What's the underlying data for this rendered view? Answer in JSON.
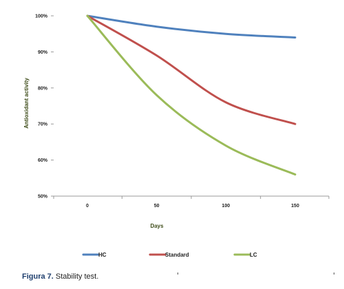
{
  "chart_data": {
    "type": "line",
    "x": [
      0,
      50,
      100,
      150
    ],
    "series": [
      {
        "name": "HC",
        "color": "#4f81bd",
        "values": [
          100,
          97,
          95,
          94
        ]
      },
      {
        "name": "Standard",
        "color": "#c0504d",
        "values": [
          100,
          89,
          76,
          70
        ]
      },
      {
        "name": "LC",
        "color": "#9bbb59",
        "values": [
          100,
          78,
          64,
          56
        ]
      }
    ],
    "x_tick_labels": [
      "0",
      "50",
      "100",
      "150"
    ],
    "y_ticks": [
      50,
      60,
      70,
      80,
      90,
      100
    ],
    "y_tick_labels": [
      "50%",
      "60%",
      "70%",
      "80%",
      "90%",
      "100%"
    ],
    "xlabel": "Days",
    "ylabel": "Antioxidant activity",
    "ylim": [
      50,
      100
    ],
    "grid": false,
    "legend_position": "bottom"
  },
  "caption": {
    "label": "Figura 7.",
    "text": " Stability test."
  }
}
